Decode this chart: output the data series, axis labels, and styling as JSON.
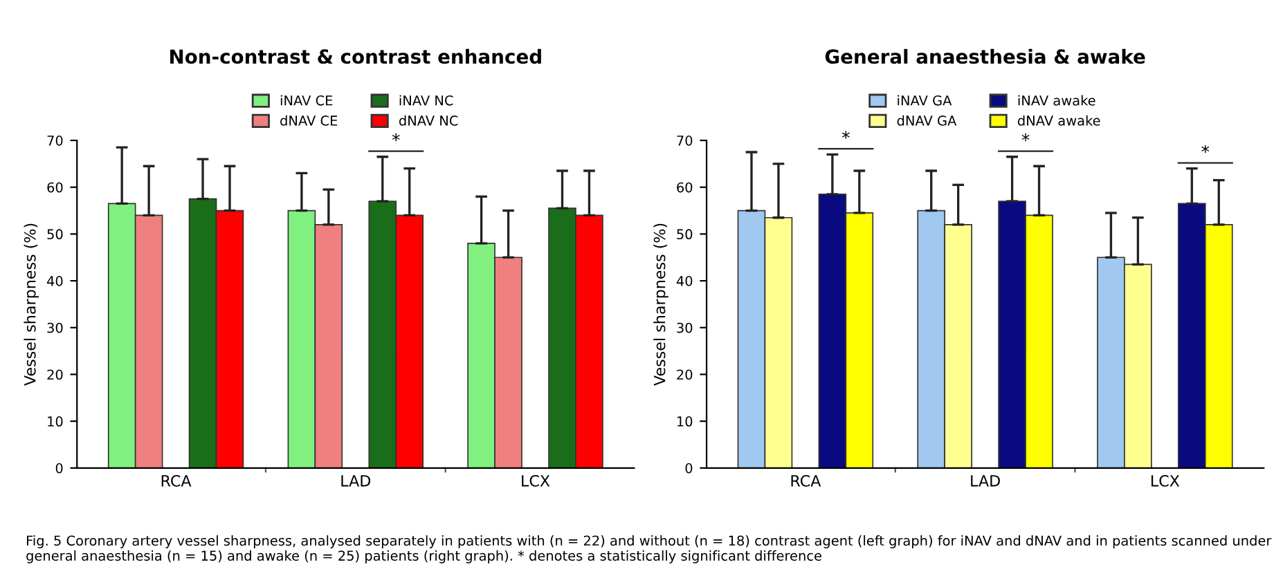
{
  "chart_data": [
    {
      "type": "bar",
      "title": "Non-contrast & contrast enhanced",
      "ylabel": "Vessel sharpness (%)",
      "categories": [
        "RCA",
        "LAD",
        "LCX"
      ],
      "ylim": [
        0,
        70
      ],
      "yticks": [
        0,
        10,
        20,
        30,
        40,
        50,
        60,
        70
      ],
      "grid": false,
      "legend": "top",
      "series": [
        {
          "name": "iNAV CE",
          "color": "#80f080",
          "values": [
            56.5,
            55,
            48
          ],
          "errors": [
            [
              56.5,
              68.5
            ],
            [
              55,
              63
            ],
            [
              48,
              58
            ]
          ]
        },
        {
          "name": "dNAV CE",
          "color": "#f08080",
          "values": [
            54,
            52,
            45
          ],
          "errors": [
            [
              54,
              64.5
            ],
            [
              52,
              59.5
            ],
            [
              45,
              55
            ]
          ]
        },
        {
          "name": "iNAV NC",
          "color": "#1a6e1a",
          "values": [
            57.5,
            57,
            55.5
          ],
          "errors": [
            [
              57.5,
              66
            ],
            [
              57,
              66.5
            ],
            [
              55.5,
              63.5
            ]
          ]
        },
        {
          "name": "dNAV NC",
          "color": "#ff0000",
          "values": [
            55,
            54,
            54
          ],
          "errors": [
            [
              55,
              64.5
            ],
            [
              54,
              64
            ],
            [
              54,
              63.5
            ]
          ]
        }
      ],
      "annotations": [
        "*",
        "Fig. 5 Coronary artery vessel sharpness, analysed separately in patients with (n = 22) and without (n = 18) contrast agent (left graph) for iNAV and dNAV and in patients scanned under general anaesthesia (n = 15) and awake (n = 25) patients (right graph). * denotes a statistically significant difference"
      ]
    },
    {
      "type": "bar",
      "title": "General anaesthesia & awake",
      "ylabel": "Vessel sharpness (%)",
      "categories": [
        "RCA",
        "LAD",
        "LCX"
      ],
      "ylim": [
        0,
        70
      ],
      "yticks": [
        0,
        10,
        20,
        30,
        40,
        50,
        60,
        70
      ],
      "grid": false,
      "legend": "top",
      "series": [
        {
          "name": "iNAV GA",
          "color": "#a0c8f0",
          "values": [
            55,
            55,
            45
          ],
          "errors": [
            [
              55,
              67.5
            ],
            [
              55,
              63.5
            ],
            [
              45,
              54.5
            ]
          ]
        },
        {
          "name": "dNAV GA",
          "color": "#ffff90",
          "values": [
            53.5,
            52,
            43.5
          ],
          "errors": [
            [
              53.5,
              65
            ],
            [
              52,
              60.5
            ],
            [
              43.5,
              53.5
            ]
          ]
        },
        {
          "name": "iNAV awake",
          "color": "#0a0a80",
          "values": [
            58.5,
            57,
            56.5
          ],
          "errors": [
            [
              58.5,
              67
            ],
            [
              57,
              66.5
            ],
            [
              56.5,
              64
            ]
          ]
        },
        {
          "name": "dNAV awake",
          "color": "#ffff00",
          "values": [
            54.5,
            54,
            52
          ],
          "errors": [
            [
              54.5,
              63.5
            ],
            [
              54,
              64.5
            ],
            [
              52,
              61.5
            ]
          ]
        }
      ],
      "annotations": [
        "*",
        "*",
        "*"
      ]
    }
  ]
}
